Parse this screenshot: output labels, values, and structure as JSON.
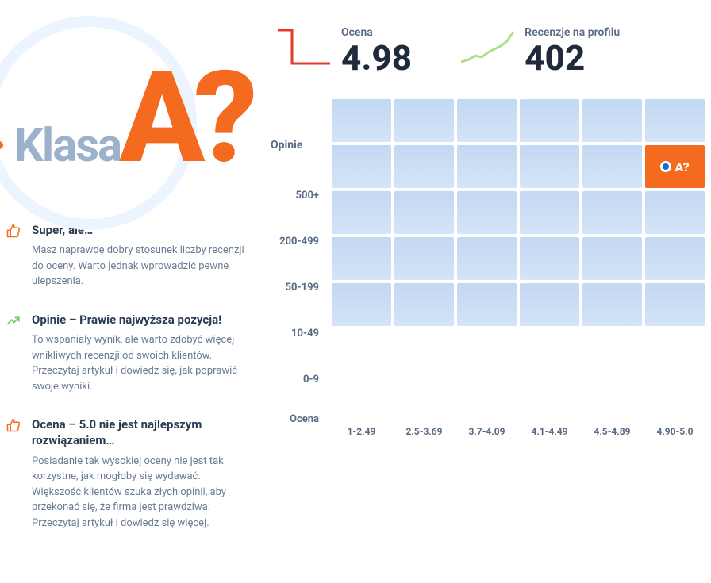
{
  "hero": {
    "label": "Klasa",
    "grade": "A?",
    "colors": {
      "accent": "#f46a1f",
      "muted": "#9cb1cb",
      "ring": "#ecf4ff"
    }
  },
  "tips": [
    {
      "icon": "thumbs-up",
      "icon_color": "#f46a1f",
      "title": "Super, ale…",
      "text": "Masz naprawdę dobry stosunek liczby recenzji do oceny. Warto jednak wprowadzić pewne ulepszenia."
    },
    {
      "icon": "trend-up",
      "icon_color": "#7cc96f",
      "title": "Opinie – Prawie najwyższa pozycja!",
      "text": "To wspaniały wynik, ale warto zdobyć więcej wnikliwych recenzji od swoich klientów. Przeczytaj artykuł i dowiedz się, jak poprawić swoje wyniki."
    },
    {
      "icon": "thumbs-up",
      "icon_color": "#f46a1f",
      "title": "Ocena – 5.0 nie jest najlepszym rozwiązaniem…",
      "text": "Posiadanie tak wysokiej oceny nie jest tak korzystne, jak mogłoby się wydawać. Większość klientów szuka złych opinii, aby przekonać się, że firma jest prawdziwa. Przeczytaj artykuł i dowiedz się więcej."
    }
  ],
  "metrics": {
    "rating": {
      "label": "Ocena",
      "value": "4.98",
      "spark_type": "step-down",
      "spark_color": "#e23b2e"
    },
    "reviews": {
      "label": "Recenzje na profilu",
      "value": "402",
      "spark_type": "rising",
      "spark_color": "#aee08a"
    }
  },
  "heatmap": {
    "y_title": "Opinie",
    "x_title": "Ocena",
    "y_labels": [
      "500+",
      "200-499",
      "50-199",
      "10-49",
      "0-9"
    ],
    "x_labels": [
      "1-2.49",
      "2.5-3.69",
      "3.7-4.09",
      "4.1-4.49",
      "4.5-4.89",
      "4.90-5.0"
    ],
    "cell_color": "#c2d8f3",
    "cell_color_bottom": "#d5e4f7",
    "highlight_color": "#f46a1f",
    "highlight_marker_color": "#0a6edd",
    "highlight": {
      "row": 1,
      "col": 5,
      "label": "A?"
    }
  }
}
